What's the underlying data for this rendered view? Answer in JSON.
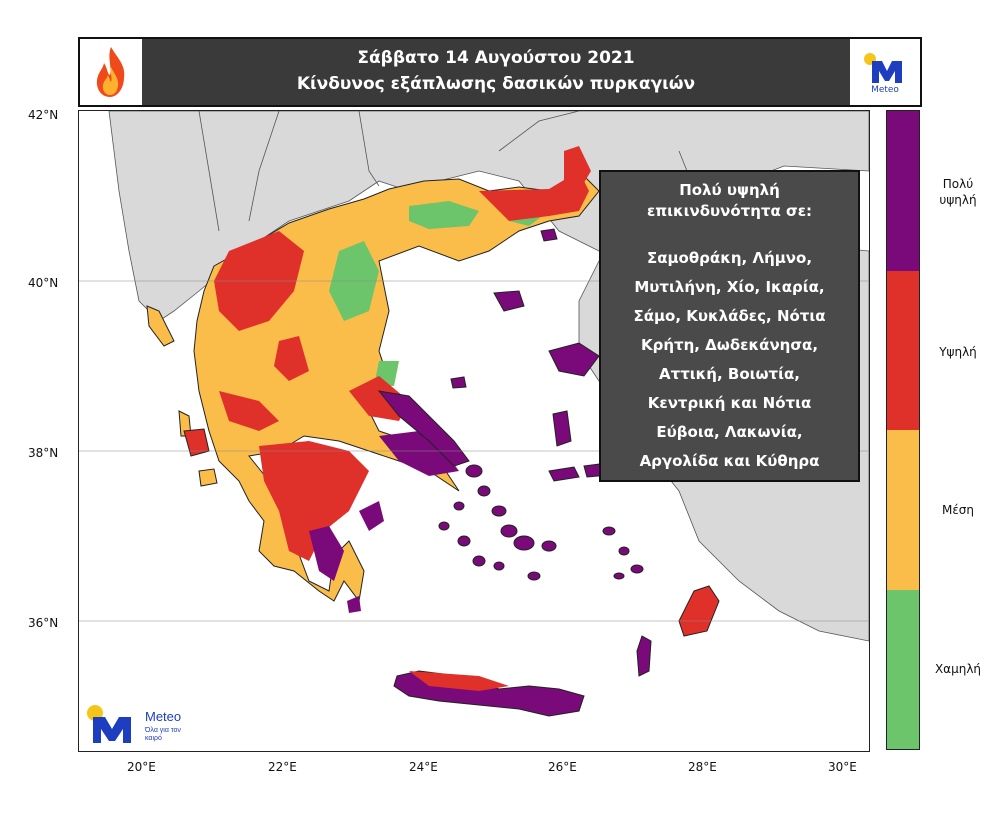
{
  "header": {
    "date": "Σάββατο  14 Αυγούστου 2021",
    "subtitle": "Κίνδυνος εξάπλωσης δασικών πυρκαγιών",
    "logo_text": "Meteo"
  },
  "map": {
    "lat_labels": [
      "42°N",
      "40°N",
      "38°N",
      "36°N"
    ],
    "lon_labels": [
      "20°E",
      "22°E",
      "24°E",
      "26°E",
      "28°E",
      "30°E"
    ],
    "watermark_brand": "Meteo",
    "watermark_tagline": "Όλα για τον καιρό",
    "colors": {
      "sea": "#ffffff",
      "land_other": "#d9d9d9",
      "low": "#6cc46b",
      "medium": "#fbbd4a",
      "high": "#e0302a",
      "very_high": "#7a0a7a"
    }
  },
  "legend": {
    "categories": [
      "Πολύ υψηλή",
      "Υψηλή",
      "Μέση",
      "Χαμηλή"
    ]
  },
  "callout": {
    "heading_line1": "Πολύ υψηλή",
    "heading_line2": "επικινδυνότητα σε:",
    "lines": [
      "Σαμοθράκη, Λήμνο,",
      "Μυτιλήνη, Χίο, Ικαρία,",
      "Σάμο, Κυκλάδες, Νότια",
      "Κρήτη, Δωδεκάνησα,",
      "Αττική, Βοιωτία,",
      "Κεντρική και Νότια",
      "Εύβοια, Λακωνία,",
      "Αργολίδα και Κύθηρα"
    ]
  }
}
